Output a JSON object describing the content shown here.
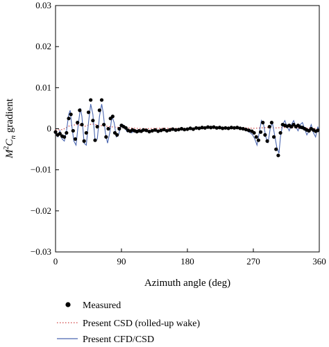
{
  "chart_data": {
    "type": "line",
    "xlabel": "Azimuth angle (deg)",
    "ylabel_parts": {
      "m": "M",
      "sup": "2",
      "c": "C",
      "sub": "n",
      "rest": " gradient"
    },
    "xlim": [
      0,
      360
    ],
    "ylim": [
      -0.03,
      0.03
    ],
    "x_ticks": [
      0,
      90,
      180,
      270,
      360
    ],
    "x_tick_labels": [
      "0",
      "90",
      "180",
      "270",
      "360"
    ],
    "y_ticks": [
      0.03,
      0.02,
      0.01,
      0,
      -0.01,
      -0.02,
      -0.03
    ],
    "y_tick_labels": [
      "0.03",
      "0.02",
      "0.01",
      "0",
      "−0.01",
      "−0.02",
      "−0.03"
    ],
    "grid": false,
    "legend_placement": "bottom",
    "series": [
      {
        "name": "Measured",
        "style": "markers",
        "color": "#000000",
        "points": [
          [
            0,
            -0.0008
          ],
          [
            3,
            -0.0015
          ],
          [
            6,
            -0.0012
          ],
          [
            9,
            -0.0018
          ],
          [
            12,
            -0.002
          ],
          [
            15,
            -0.001
          ],
          [
            18,
            0.0025
          ],
          [
            21,
            0.0035
          ],
          [
            24,
            -0.0005
          ],
          [
            27,
            -0.0025
          ],
          [
            30,
            0.0015
          ],
          [
            33,
            0.0045
          ],
          [
            36,
            0.001
          ],
          [
            39,
            -0.003
          ],
          [
            42,
            -0.001
          ],
          [
            45,
            0.004
          ],
          [
            48,
            0.007
          ],
          [
            51,
            0.002
          ],
          [
            54,
            -0.0028
          ],
          [
            57,
            0.0005
          ],
          [
            60,
            0.0045
          ],
          [
            63,
            0.007
          ],
          [
            66,
            0.001
          ],
          [
            69,
            -0.002
          ],
          [
            72,
            0.0
          ],
          [
            75,
            0.0025
          ],
          [
            78,
            0.003
          ],
          [
            81,
            -0.001
          ],
          [
            84,
            -0.0015
          ],
          [
            87,
            0.0
          ],
          [
            90,
            0.0008
          ],
          [
            93,
            0.0005
          ],
          [
            96,
            0.0002
          ],
          [
            99,
            -0.0004
          ],
          [
            102,
            -0.0006
          ],
          [
            105,
            -0.0003
          ],
          [
            108,
            -0.0005
          ],
          [
            111,
            -0.0007
          ],
          [
            114,
            -0.0005
          ],
          [
            117,
            -0.0006
          ],
          [
            120,
            -0.0003
          ],
          [
            124,
            -0.0004
          ],
          [
            128,
            -0.0007
          ],
          [
            132,
            -0.0005
          ],
          [
            136,
            -0.0003
          ],
          [
            140,
            -0.0006
          ],
          [
            144,
            -0.0004
          ],
          [
            148,
            -0.0002
          ],
          [
            152,
            -0.0005
          ],
          [
            156,
            -0.0003
          ],
          [
            160,
            -0.0001
          ],
          [
            164,
            -0.0003
          ],
          [
            168,
            -0.0002
          ],
          [
            172,
            0.0
          ],
          [
            176,
            -0.0002
          ],
          [
            180,
            -0.0001
          ],
          [
            184,
            0.0001
          ],
          [
            188,
            -0.0001
          ],
          [
            192,
            0.0002
          ],
          [
            196,
            0.0001
          ],
          [
            200,
            0.0003
          ],
          [
            204,
            0.0002
          ],
          [
            208,
            0.0004
          ],
          [
            212,
            0.0003
          ],
          [
            216,
            0.0004
          ],
          [
            220,
            0.0002
          ],
          [
            224,
            0.0003
          ],
          [
            228,
            0.0001
          ],
          [
            232,
            0.0002
          ],
          [
            236,
            0.0001
          ],
          [
            240,
            0.0003
          ],
          [
            244,
            0.0002
          ],
          [
            248,
            0.0003
          ],
          [
            252,
            0.0001
          ],
          [
            256,
            0.0
          ],
          [
            260,
            -0.0002
          ],
          [
            264,
            -0.0004
          ],
          [
            268,
            -0.0006
          ],
          [
            271,
            -0.001
          ],
          [
            274,
            -0.002
          ],
          [
            277,
            -0.0028
          ],
          [
            280,
            -0.0008
          ],
          [
            283,
            0.0015
          ],
          [
            286,
            -0.0015
          ],
          [
            289,
            -0.003
          ],
          [
            292,
            0.0005
          ],
          [
            295,
            0.0015
          ],
          [
            298,
            -0.002
          ],
          [
            301,
            -0.005
          ],
          [
            304,
            -0.0065
          ],
          [
            307,
            -0.001
          ],
          [
            310,
            0.001
          ],
          [
            313,
            0.0008
          ],
          [
            316,
            0.0006
          ],
          [
            319,
            0.0008
          ],
          [
            322,
            0.0005
          ],
          [
            325,
            0.001
          ],
          [
            328,
            0.0005
          ],
          [
            331,
            0.0008
          ],
          [
            334,
            0.0004
          ],
          [
            337,
            0.0003
          ],
          [
            340,
            0.0
          ],
          [
            343,
            -0.0003
          ],
          [
            346,
            -0.0005
          ],
          [
            349,
            0.0
          ],
          [
            352,
            -0.0003
          ],
          [
            355,
            -0.0006
          ],
          [
            358,
            -0.0004
          ]
        ]
      },
      {
        "name": "Present CSD (rolled-up wake)",
        "style": "dotted",
        "color": "#d04040",
        "points": [
          [
            0,
            -0.0003
          ],
          [
            10,
            -0.0002
          ],
          [
            20,
            0.0008
          ],
          [
            30,
            0.001
          ],
          [
            40,
            0.0006
          ],
          [
            50,
            0.0012
          ],
          [
            60,
            0.0008
          ],
          [
            70,
            0.0006
          ],
          [
            80,
            0.0004
          ],
          [
            90,
            0.0003
          ],
          [
            100,
            0.0002
          ],
          [
            110,
            0.0001
          ],
          [
            120,
            0.0
          ],
          [
            140,
            0.0001
          ],
          [
            160,
            0.0001
          ],
          [
            180,
            0.0001
          ],
          [
            200,
            0.0002
          ],
          [
            220,
            0.0003
          ],
          [
            240,
            0.0003
          ],
          [
            260,
            0.0002
          ],
          [
            270,
            0.0001
          ],
          [
            280,
            0.0002
          ],
          [
            290,
            0.0003
          ],
          [
            300,
            0.0002
          ],
          [
            310,
            0.0003
          ],
          [
            320,
            0.0003
          ],
          [
            330,
            0.0002
          ],
          [
            340,
            0.0002
          ],
          [
            350,
            0.0001
          ],
          [
            360,
            0.0
          ]
        ]
      },
      {
        "name": "Present CFD/CSD",
        "style": "solid",
        "color": "#4a66b0",
        "points": [
          [
            0,
            -0.001
          ],
          [
            3,
            -0.002
          ],
          [
            6,
            -0.0005
          ],
          [
            9,
            -0.0025
          ],
          [
            12,
            -0.003
          ],
          [
            15,
            -0.0005
          ],
          [
            18,
            0.0035
          ],
          [
            20,
            0.0045
          ],
          [
            22,
            0.001
          ],
          [
            25,
            -0.003
          ],
          [
            28,
            -0.004
          ],
          [
            31,
            0.001
          ],
          [
            34,
            0.005
          ],
          [
            36,
            0.003
          ],
          [
            39,
            -0.0035
          ],
          [
            42,
            -0.004
          ],
          [
            45,
            0.0015
          ],
          [
            48,
            0.006
          ],
          [
            51,
            0.0035
          ],
          [
            54,
            -0.003
          ],
          [
            57,
            -0.0025
          ],
          [
            60,
            0.003
          ],
          [
            63,
            0.006
          ],
          [
            65,
            0.004
          ],
          [
            68,
            -0.001
          ],
          [
            71,
            -0.0035
          ],
          [
            74,
            -0.001
          ],
          [
            77,
            0.003
          ],
          [
            80,
            0.0015
          ],
          [
            83,
            -0.002
          ],
          [
            86,
            -0.0015
          ],
          [
            89,
            0.0005
          ],
          [
            92,
            0.001
          ],
          [
            95,
            0.0
          ],
          [
            98,
            -0.0008
          ],
          [
            101,
            -0.0005
          ],
          [
            104,
            -0.001
          ],
          [
            108,
            -0.0004
          ],
          [
            112,
            -0.0008
          ],
          [
            116,
            -0.0006
          ],
          [
            120,
            -0.0003
          ],
          [
            126,
            -0.0007
          ],
          [
            132,
            -0.0004
          ],
          [
            138,
            -0.0006
          ],
          [
            144,
            -0.0003
          ],
          [
            150,
            -0.0005
          ],
          [
            156,
            -0.0002
          ],
          [
            162,
            -0.0004
          ],
          [
            168,
            -0.0001
          ],
          [
            174,
            -0.0003
          ],
          [
            180,
            0.0
          ],
          [
            186,
            -0.0002
          ],
          [
            192,
            0.0001
          ],
          [
            198,
            0.0
          ],
          [
            204,
            0.0003
          ],
          [
            210,
            0.0002
          ],
          [
            216,
            0.0004
          ],
          [
            222,
            0.0002
          ],
          [
            228,
            0.0003
          ],
          [
            234,
            0.0001
          ],
          [
            240,
            0.0004
          ],
          [
            246,
            0.0002
          ],
          [
            252,
            0.0003
          ],
          [
            258,
            0.0
          ],
          [
            262,
            -0.0006
          ],
          [
            266,
            -0.001
          ],
          [
            269,
            -0.0015
          ],
          [
            272,
            -0.0025
          ],
          [
            275,
            -0.004
          ],
          [
            278,
            -0.001
          ],
          [
            281,
            0.002
          ],
          [
            284,
            0.001
          ],
          [
            287,
            -0.002
          ],
          [
            290,
            -0.0035
          ],
          [
            293,
            0.0
          ],
          [
            296,
            0.0015
          ],
          [
            299,
            -0.0015
          ],
          [
            302,
            -0.0045
          ],
          [
            305,
            -0.006
          ],
          [
            307,
            -0.002
          ],
          [
            310,
            0.001
          ],
          [
            313,
            0.002
          ],
          [
            316,
            0.0005
          ],
          [
            319,
            -0.0005
          ],
          [
            322,
            0.001
          ],
          [
            325,
            0.002
          ],
          [
            328,
            0.0005
          ],
          [
            331,
            -0.0005
          ],
          [
            334,
            0.001
          ],
          [
            337,
            0.0015
          ],
          [
            340,
            0.0
          ],
          [
            343,
            -0.0015
          ],
          [
            346,
            -0.0005
          ],
          [
            349,
            0.001
          ],
          [
            352,
            -0.001
          ],
          [
            355,
            -0.002
          ],
          [
            358,
            0.0005
          ],
          [
            360,
            -0.0008
          ]
        ]
      }
    ]
  }
}
